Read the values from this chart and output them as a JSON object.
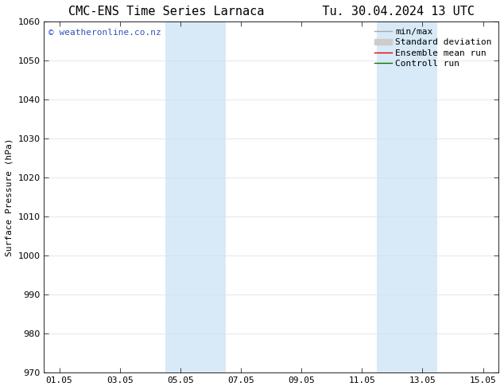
{
  "title_left": "CMC-ENS Time Series Larnaca",
  "title_right": "Tu. 30.04.2024 13 UTC",
  "ylabel": "Surface Pressure (hPa)",
  "ylim": [
    970,
    1060
  ],
  "yticks": [
    970,
    980,
    990,
    1000,
    1010,
    1020,
    1030,
    1040,
    1050,
    1060
  ],
  "xtick_labels": [
    "01.05",
    "03.05",
    "05.05",
    "07.05",
    "09.05",
    "11.05",
    "13.05",
    "15.05"
  ],
  "xtick_positions": [
    0,
    2,
    4,
    6,
    8,
    10,
    12,
    14
  ],
  "xlim": [
    -0.5,
    14.5
  ],
  "shaded_regions": [
    {
      "xmin": 3.5,
      "xmax": 5.5
    },
    {
      "xmin": 10.5,
      "xmax": 12.5
    }
  ],
  "shade_color": "#d8eaf8",
  "watermark_text": "© weatheronline.co.nz",
  "watermark_color": "#3355bb",
  "watermark_fontsize": 8,
  "legend_entries": [
    {
      "label": "min/max",
      "color": "#aaaaaa",
      "lw": 1.0
    },
    {
      "label": "Standard deviation",
      "color": "#cccccc",
      "lw": 5
    },
    {
      "label": "Ensemble mean run",
      "color": "#dd0000",
      "lw": 1.0
    },
    {
      "label": "Controll run",
      "color": "#007700",
      "lw": 1.0
    }
  ],
  "bg_color": "#ffffff",
  "grid_color": "#dddddd",
  "title_fontsize": 11,
  "tick_fontsize": 8,
  "legend_fontsize": 8,
  "ylabel_fontsize": 8
}
